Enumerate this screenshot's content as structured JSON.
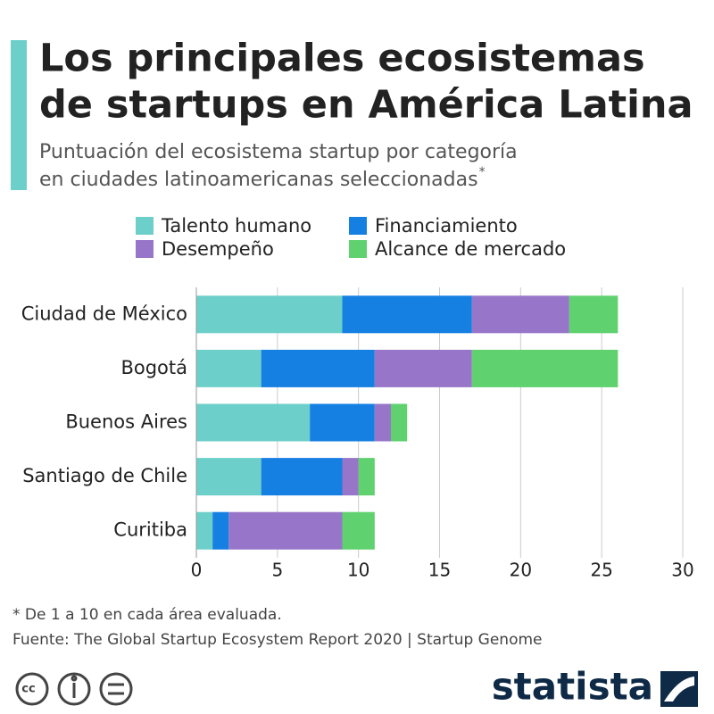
{
  "chart_data": {
    "type": "bar",
    "orientation": "horizontal",
    "stacked": true,
    "title": [
      "Los principales ecosistemas",
      "de startups en América Latina"
    ],
    "subtitle": [
      "Puntuación del ecosistema startup por categoría",
      "en ciudades latinoamericanas seleccionadas"
    ],
    "subtitle_mark": "*",
    "categories": [
      "Ciudad de México",
      "Bogotá",
      "Buenos Aires",
      "Santiago de Chile",
      "Curitiba"
    ],
    "series": [
      {
        "name": "Talento humano",
        "color": "#6dcfc9",
        "values": [
          9,
          4,
          7,
          4,
          1
        ]
      },
      {
        "name": "Financiamiento",
        "color": "#1680e2",
        "values": [
          8,
          7,
          4,
          5,
          1
        ]
      },
      {
        "name": "Desempeño",
        "color": "#9776c9",
        "values": [
          6,
          6,
          1,
          1,
          7
        ]
      },
      {
        "name": "Alcance de mercado",
        "color": "#5fd16e",
        "values": [
          3,
          9,
          1,
          1,
          2
        ]
      }
    ],
    "xlim": [
      0,
      30
    ],
    "xticks": [
      0,
      5,
      10,
      15,
      20,
      25,
      30
    ],
    "grid": true,
    "footnote": "* De 1 a 10 en cada área evaluada.",
    "source": "Fuente: The Global Startup Ecosystem Report 2020 | Startup Genome"
  },
  "brand": "statista"
}
